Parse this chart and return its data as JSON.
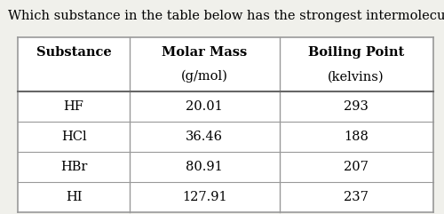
{
  "question": "Which substance in the table below has the strongest intermolecular forces?",
  "col_headers": [
    "Substance",
    "Molar Mass",
    "Boiling Point"
  ],
  "col_subheaders": [
    "",
    "(g/mol)",
    "(kelvins)"
  ],
  "rows": [
    [
      "HF",
      "20.01",
      "293"
    ],
    [
      "HCl",
      "36.46",
      "188"
    ],
    [
      "HBr",
      "80.91",
      "207"
    ],
    [
      "HI",
      "127.91",
      "237"
    ]
  ],
  "bg_color": "#f0f0eb",
  "table_bg": "#ffffff",
  "question_fontsize": 10.5,
  "header_fontsize": 10.5,
  "cell_fontsize": 10.5,
  "line_color": "#999999",
  "line_color_thick": "#666666"
}
